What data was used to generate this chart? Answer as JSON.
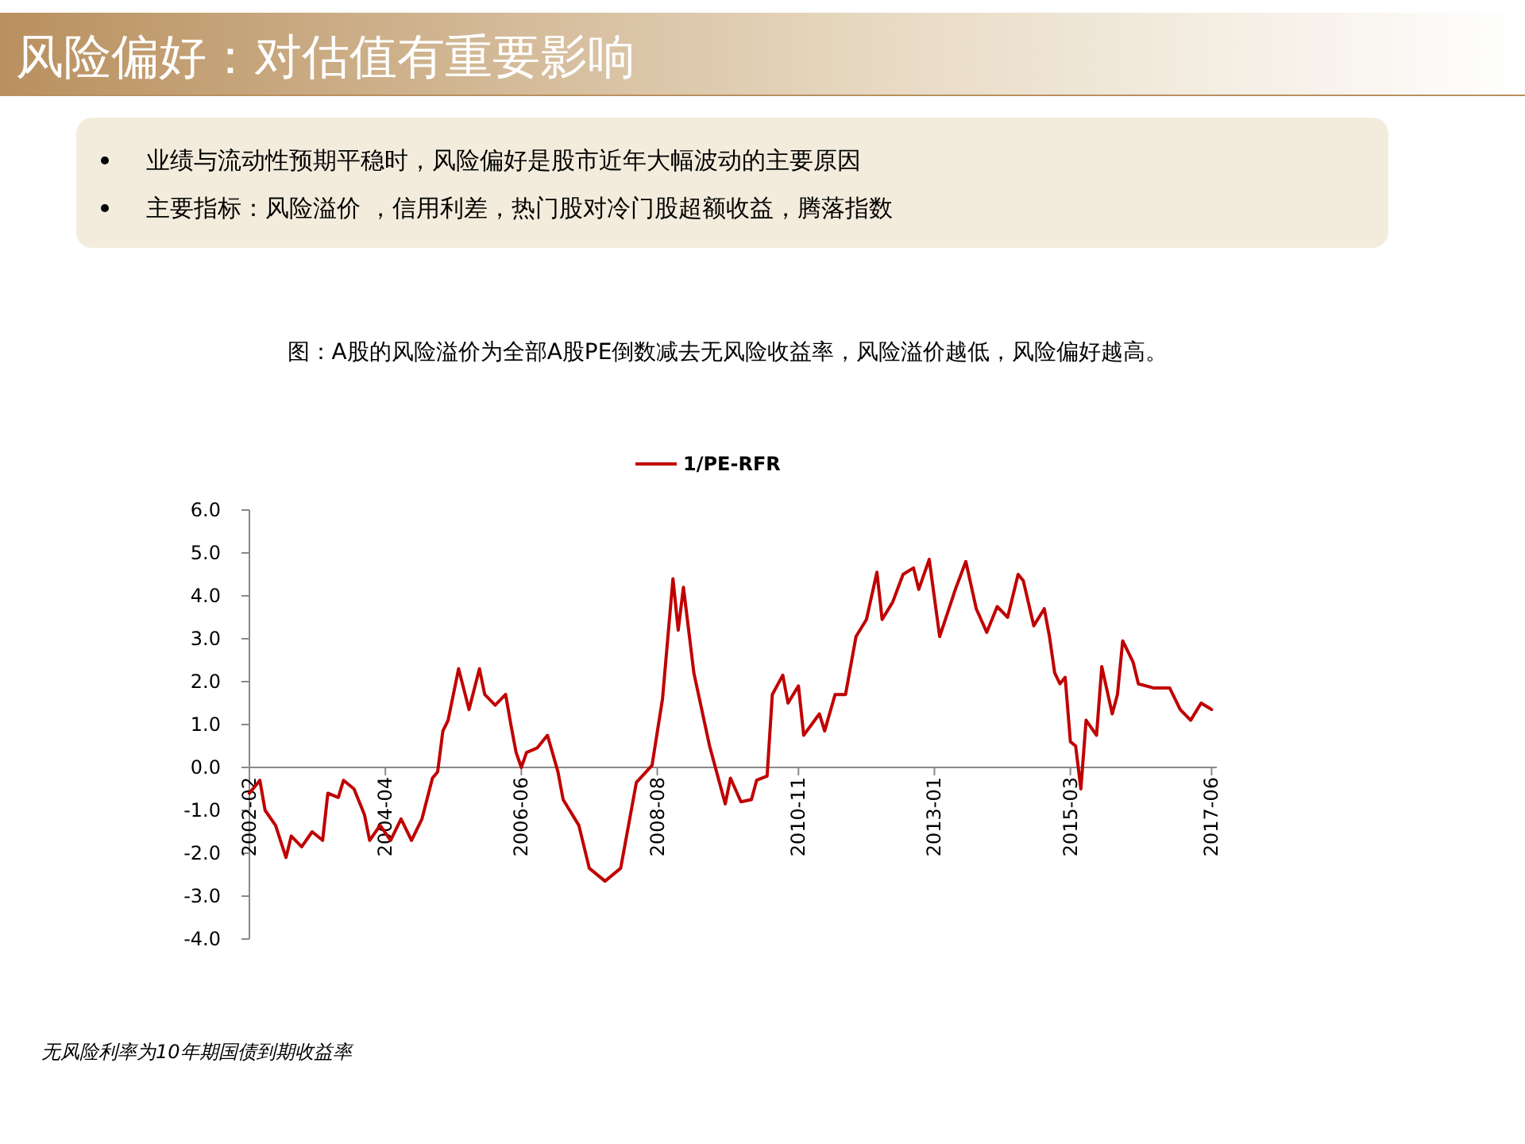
{
  "chart_data": {
    "type": "line",
    "title": "风险偏好：对估值有重要影响",
    "annotations": [
      "业绩与流动性预期平稳时，风险偏好是股市近年大幅波动的主要原因",
      "主要指标：风险溢价  ，信用利差，热门股对冷门股超额收益，腾落指数",
      "图：A股的风险溢价为全部A股PE倒数减去无风险收益率，风险溢价越低，风险偏好越高。",
      "无风险利率为10年期国债到期收益率"
    ],
    "x": [
      "2002-02",
      "2002-04",
      "2002-05",
      "2002-07",
      "2002-09",
      "2002-10",
      "2002-12",
      "2003-02",
      "2003-04",
      "2003-05",
      "2003-07",
      "2003-08",
      "2003-10",
      "2003-12",
      "2004-01",
      "2004-03",
      "2004-05",
      "2004-07",
      "2004-09",
      "2004-11",
      "2005-01",
      "2005-02",
      "2005-03",
      "2005-04",
      "2005-06",
      "2005-08",
      "2005-10",
      "2005-11",
      "2006-01",
      "2006-03",
      "2006-04",
      "2006-05",
      "2006-06",
      "2006-07",
      "2006-09",
      "2006-11",
      "2007-01",
      "2007-02",
      "2007-05",
      "2007-07",
      "2007-10",
      "2008-01",
      "2008-04",
      "2008-07",
      "2008-09",
      "2008-11",
      "2008-12",
      "2009-01",
      "2009-03",
      "2009-06",
      "2009-09",
      "2009-10",
      "2009-12",
      "2010-02",
      "2010-03",
      "2010-05",
      "2010-06",
      "2010-08",
      "2010-09",
      "2010-11",
      "2010-12",
      "2011-03",
      "2011-04",
      "2011-06",
      "2011-08",
      "2011-10",
      "2011-12",
      "2012-02",
      "2012-03",
      "2012-05",
      "2012-07",
      "2012-09",
      "2012-10",
      "2012-12",
      "2013-02",
      "2013-05",
      "2013-07",
      "2013-09",
      "2013-11",
      "2014-01",
      "2014-03",
      "2014-05",
      "2014-06",
      "2014-08",
      "2014-10",
      "2014-11",
      "2014-12",
      "2015-01",
      "2015-02",
      "2015-03",
      "2015-04",
      "2015-05",
      "2015-06",
      "2015-08",
      "2015-09",
      "2015-11",
      "2015-12",
      "2016-01",
      "2016-03",
      "2016-04",
      "2016-07",
      "2016-10",
      "2016-12",
      "2017-02",
      "2017-04",
      "2017-06"
    ],
    "series": [
      {
        "name": "1/PE-RFR",
        "color": "#c00000",
        "values": [
          -0.6,
          -0.3,
          -1.0,
          -1.35,
          -2.1,
          -1.6,
          -1.85,
          -1.5,
          -1.7,
          -0.6,
          -0.7,
          -0.3,
          -0.5,
          -1.1,
          -1.7,
          -1.35,
          -1.7,
          -1.2,
          -1.7,
          -1.2,
          -0.25,
          -0.1,
          0.85,
          1.1,
          2.3,
          1.35,
          2.3,
          1.7,
          1.45,
          1.7,
          1.0,
          0.35,
          0.0,
          0.35,
          0.45,
          0.75,
          -0.1,
          -0.75,
          -1.35,
          -2.35,
          -2.65,
          -2.35,
          -0.35,
          0.05,
          1.6,
          4.4,
          3.2,
          4.2,
          2.2,
          0.5,
          -0.85,
          -0.25,
          -0.8,
          -0.75,
          -0.3,
          -0.2,
          1.7,
          2.15,
          1.5,
          1.9,
          0.75,
          1.25,
          0.85,
          1.7,
          1.7,
          3.05,
          3.45,
          4.55,
          3.45,
          3.85,
          4.5,
          4.65,
          4.15,
          4.85,
          3.05,
          4.15,
          4.8,
          3.7,
          3.15,
          3.75,
          3.5,
          4.5,
          4.35,
          3.3,
          3.7,
          3.05,
          2.2,
          1.95,
          2.1,
          0.6,
          0.5,
          -0.5,
          1.1,
          0.75,
          2.35,
          1.25,
          1.7,
          2.95,
          2.45,
          1.95,
          1.85,
          1.85,
          1.35,
          1.1,
          1.5,
          1.35
        ]
      }
    ],
    "xlim": [
      "2002-02",
      "2017-07"
    ],
    "xticks": [
      "2002-02",
      "2004-04",
      "2006-06",
      "2008-08",
      "2010-11",
      "2013-01",
      "2015-03",
      "2017-06"
    ],
    "ylim": [
      -4,
      6
    ],
    "yticks": [
      {
        "value": -4,
        "label": "-4.0"
      },
      {
        "value": -3,
        "label": "-3.0"
      },
      {
        "value": -2,
        "label": "-2.0"
      },
      {
        "value": -1,
        "label": "-1.0"
      },
      {
        "value": 0,
        "label": "0.0"
      },
      {
        "value": 1,
        "label": "1.0"
      },
      {
        "value": 2,
        "label": "2.0"
      },
      {
        "value": 3,
        "label": "3.0"
      },
      {
        "value": 4,
        "label": "4.0"
      },
      {
        "value": 5,
        "label": "5.0"
      },
      {
        "value": 6,
        "label": "6.0"
      }
    ],
    "legend": "top",
    "grid": false
  }
}
